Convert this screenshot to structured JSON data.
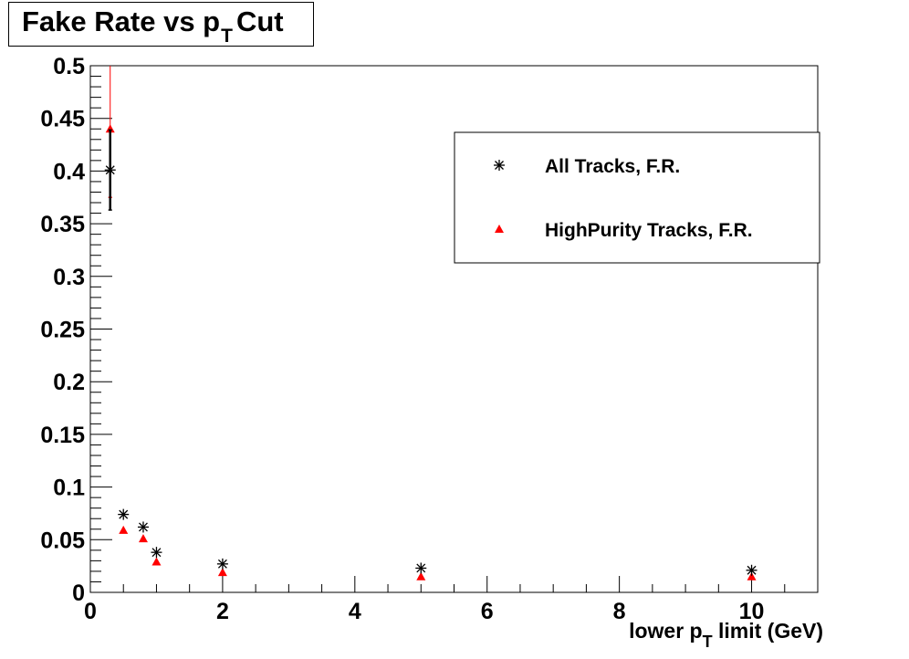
{
  "title": {
    "main": "Fake Rate vs p",
    "sub": "T",
    "suffix": "Cut"
  },
  "chart_data": {
    "type": "scatter",
    "title": "Fake Rate vs pT Cut",
    "xlabel": {
      "main": "lower p",
      "sub": "T",
      "suffix": "limit (GeV)"
    },
    "ylabel": "",
    "xlim": [
      0,
      11
    ],
    "ylim": [
      0,
      0.5
    ],
    "x_ticks": [
      "0",
      "2",
      "4",
      "6",
      "8",
      "10"
    ],
    "y_ticks": [
      "0",
      "0.05",
      "0.1",
      "0.15",
      "0.2",
      "0.25",
      "0.3",
      "0.35",
      "0.4",
      "0.45",
      "0.5"
    ],
    "grid": false,
    "legend_position": "top-right",
    "series": [
      {
        "name": "All Tracks, F.R.",
        "marker": "star",
        "color": "#000000",
        "points": [
          {
            "x": 0.3,
            "y": 0.401,
            "err": 0.038
          },
          {
            "x": 0.5,
            "y": 0.074,
            "err": 0
          },
          {
            "x": 0.8,
            "y": 0.062,
            "err": 0
          },
          {
            "x": 1.0,
            "y": 0.038,
            "err": 0
          },
          {
            "x": 2.0,
            "y": 0.027,
            "err": 0
          },
          {
            "x": 5.0,
            "y": 0.023,
            "err": 0
          },
          {
            "x": 10.0,
            "y": 0.021,
            "err": 0
          }
        ]
      },
      {
        "name": "HighPurity Tracks, F.R.",
        "marker": "triangle",
        "color": "#ff0000",
        "points": [
          {
            "x": 0.3,
            "y": 0.44,
            "err": 0.065
          },
          {
            "x": 0.5,
            "y": 0.059,
            "err": 0
          },
          {
            "x": 0.8,
            "y": 0.051,
            "err": 0
          },
          {
            "x": 1.0,
            "y": 0.029,
            "err": 0
          },
          {
            "x": 2.0,
            "y": 0.019,
            "err": 0
          },
          {
            "x": 5.0,
            "y": 0.015,
            "err": 0
          },
          {
            "x": 10.0,
            "y": 0.015,
            "err": 0
          }
        ]
      }
    ]
  }
}
